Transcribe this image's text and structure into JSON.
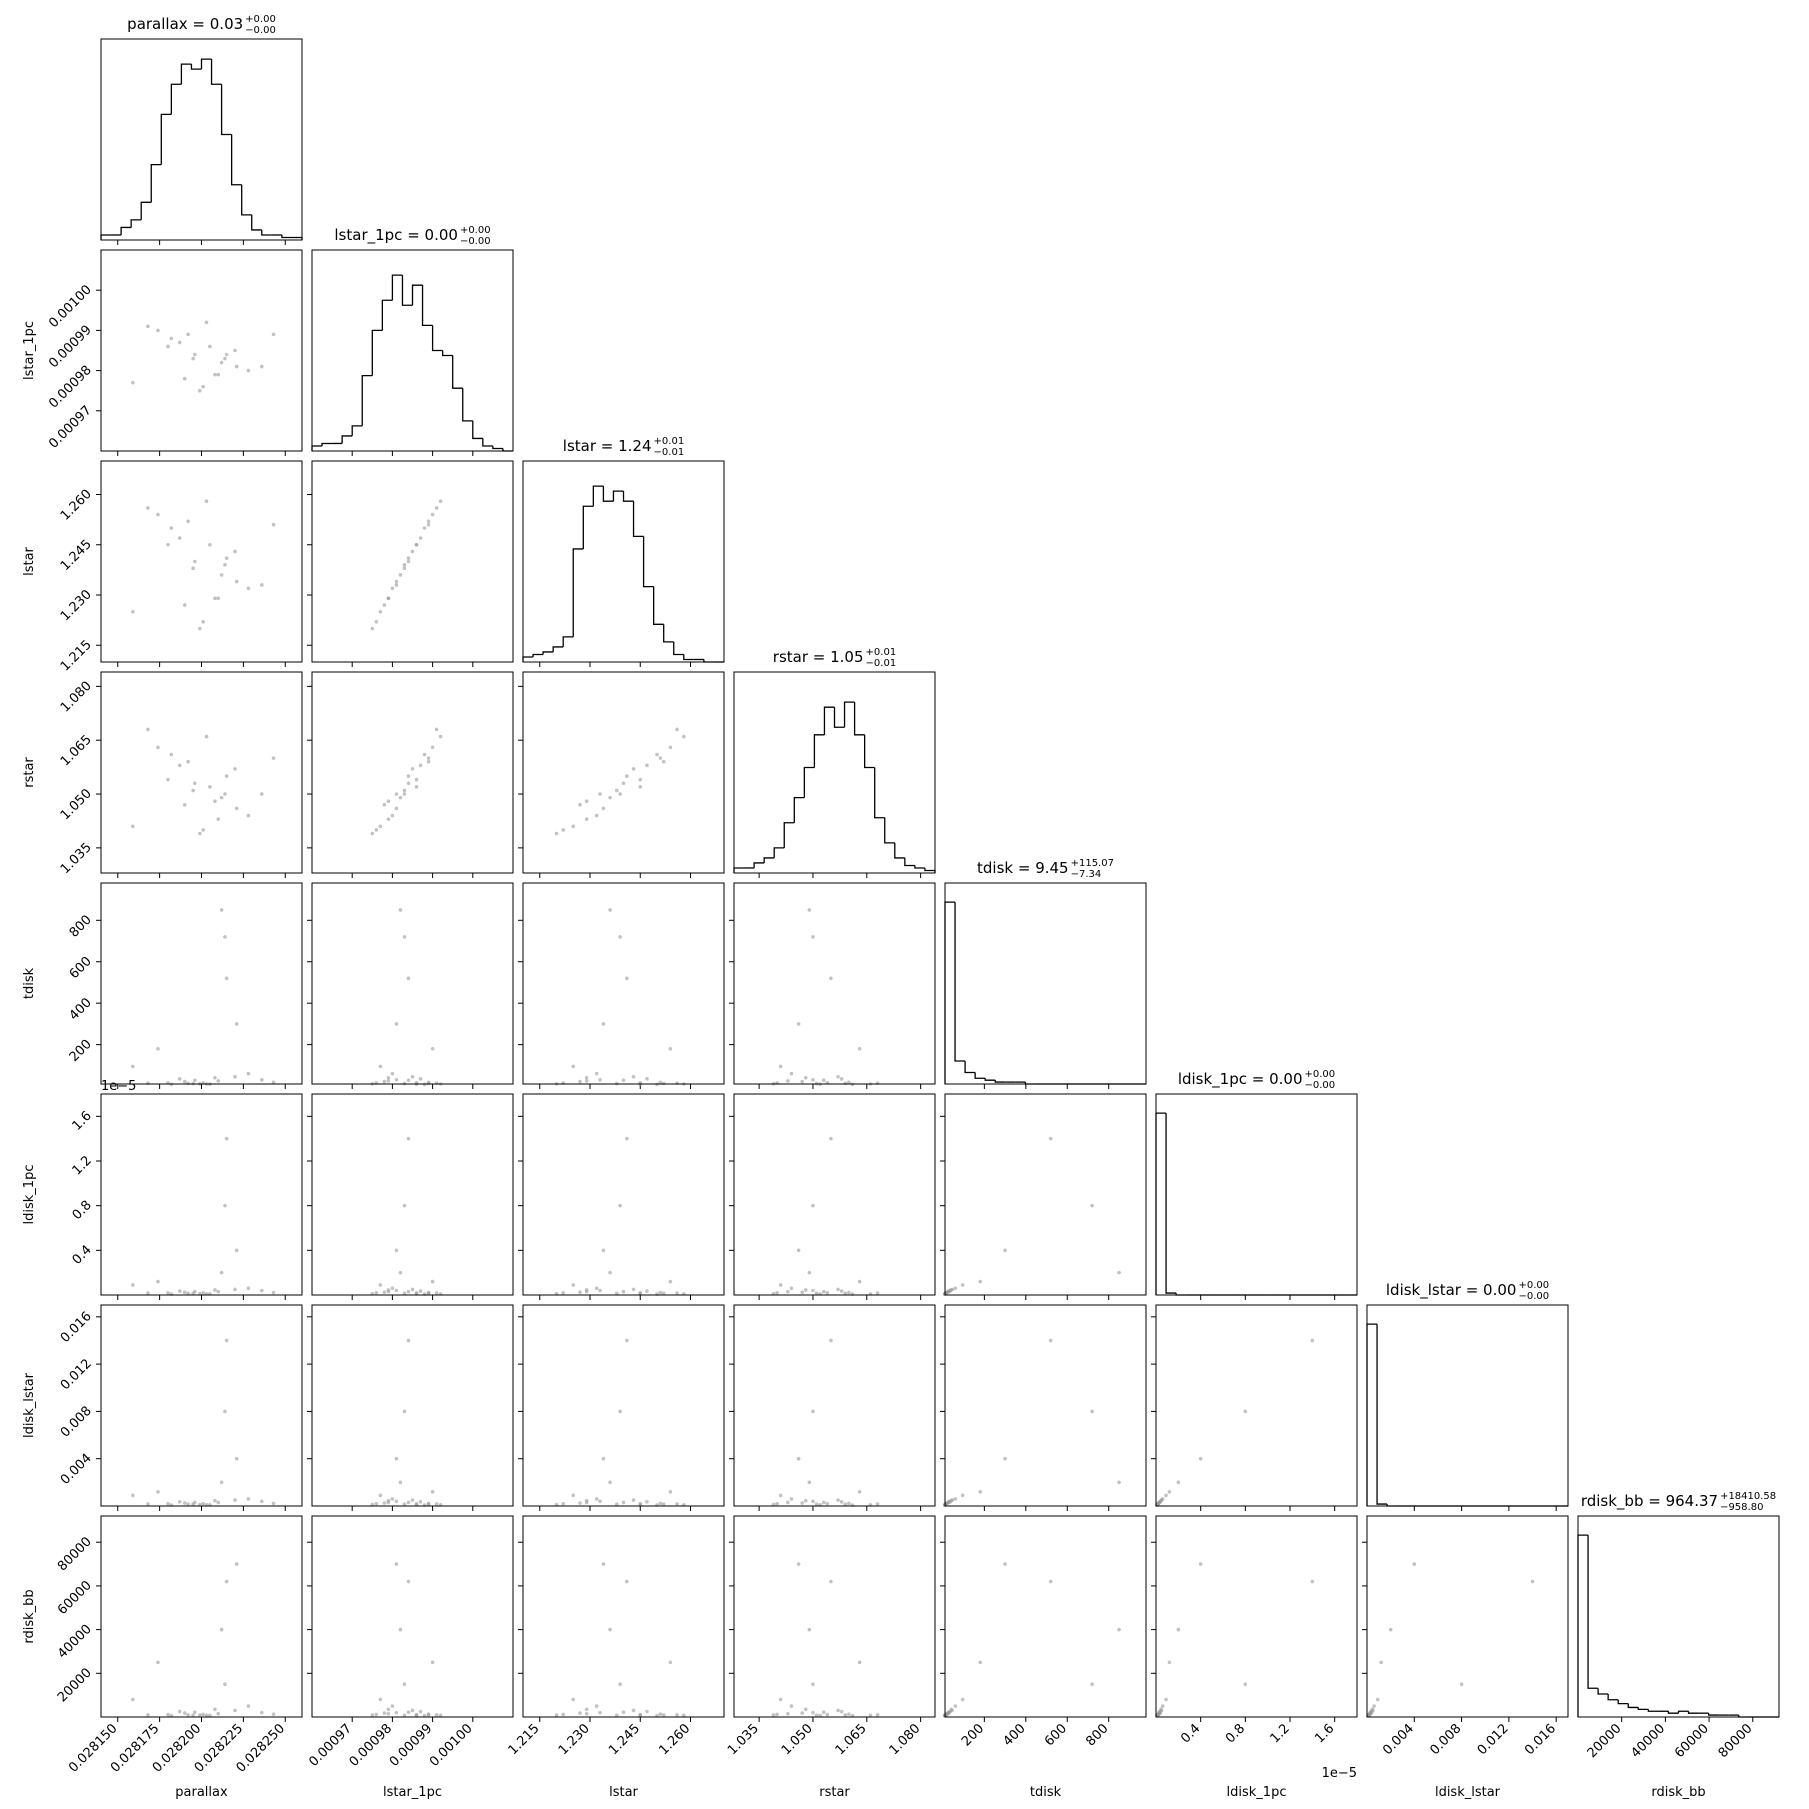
{
  "chart_data": {
    "type": "corner",
    "color": "#000000",
    "point_color": "#9a9a9a",
    "params": [
      {
        "name": "parallax",
        "title": "parallax = 0.03",
        "upper": "+0.00",
        "lower": "−0.00",
        "lim": [
          0.02814,
          0.02826
        ],
        "ticks": [
          {
            "value": 0.02815,
            "label": "0.028150"
          },
          0.028175,
          {
            "value": 0.0282,
            "label": "0.028200"
          },
          0.028225,
          {
            "value": 0.02825,
            "label": "0.028250"
          }
        ],
        "bins": [
          0.02814,
          0.028146,
          0.028152,
          0.028158,
          0.028164,
          0.02817,
          0.028176,
          0.028182,
          0.028188,
          0.028194,
          0.0282,
          0.028206,
          0.028212,
          0.028218,
          0.028224,
          0.02823,
          0.028236,
          0.028242,
          0.028248,
          0.028254,
          0.02826
        ],
        "counts": [
          2,
          2,
          5,
          8,
          15,
          30,
          50,
          62,
          70,
          68,
          72,
          62,
          42,
          22,
          10,
          4,
          2,
          2,
          1,
          1
        ],
        "hist_ylim": [
          0,
          80
        ],
        "samples": [
          0.028195,
          0.02821,
          0.028182,
          0.02822,
          0.028201,
          0.028174,
          0.028236,
          0.028205,
          0.02819,
          0.028215,
          0.028168,
          0.028228,
          0.028199,
          0.028187,
          0.028212,
          0.028243,
          0.028159,
          0.028203,
          0.028196,
          0.028221,
          0.02818,
          0.028208,
          0.028192,
          0.028214
        ]
      },
      {
        "name": "lstar_1pc",
        "title": "lstar_1pc = 0.00",
        "upper": "+0.00",
        "lower": "−0.00",
        "lim": [
          0.00096,
          0.00101
        ],
        "ticks": [
          0.00097,
          0.00098,
          0.00099,
          {
            "value": 0.001,
            "label": "0.00100"
          }
        ],
        "bins": [
          0.00096,
          0.0009625,
          0.000965,
          0.0009675,
          0.00097,
          0.0009725,
          0.000975,
          0.0009775,
          0.00098,
          0.0009825,
          0.000985,
          0.0009875,
          0.00099,
          0.0009925,
          0.000995,
          0.0009975,
          0.001,
          0.0010025,
          0.001005,
          0.0010075,
          0.00101
        ],
        "counts": [
          2,
          3,
          3,
          6,
          10,
          30,
          48,
          60,
          70,
          58,
          66,
          50,
          40,
          38,
          25,
          12,
          5,
          2,
          1,
          0
        ],
        "hist_ylim": [
          0,
          80
        ],
        "samples": [
          0.000983,
          0.000979,
          0.000988,
          0.000985,
          0.000976,
          0.00099,
          0.000981,
          0.000986,
          0.000978,
          0.000984,
          0.000991,
          0.00098,
          0.000975,
          0.000987,
          0.000982,
          0.000989,
          0.000977,
          0.000992,
          0.000984,
          0.000981,
          0.000986,
          0.000979,
          0.000989,
          0.000983
        ]
      },
      {
        "name": "lstar",
        "title": "lstar = 1.24",
        "upper": "+0.01",
        "lower": "−0.01",
        "lim": [
          1.21,
          1.27
        ],
        "ticks": [
          1.215,
          {
            "value": 1.23,
            "label": "1.230"
          },
          1.245,
          {
            "value": 1.26,
            "label": "1.260"
          }
        ],
        "bins": [
          1.21,
          1.213,
          1.216,
          1.219,
          1.222,
          1.225,
          1.228,
          1.231,
          1.234,
          1.237,
          1.24,
          1.243,
          1.246,
          1.249,
          1.252,
          1.255,
          1.258,
          1.261,
          1.264,
          1.267,
          1.27
        ],
        "counts": [
          2,
          3,
          4,
          6,
          10,
          45,
          62,
          70,
          64,
          68,
          64,
          50,
          30,
          15,
          8,
          3,
          1,
          1,
          0,
          0
        ],
        "hist_ylim": [
          0,
          80
        ],
        "samples": [
          1.238,
          1.229,
          1.25,
          1.243,
          1.222,
          1.254,
          1.233,
          1.245,
          1.227,
          1.241,
          1.256,
          1.232,
          1.22,
          1.247,
          1.236,
          1.251,
          1.225,
          1.258,
          1.24,
          1.234,
          1.245,
          1.229,
          1.252,
          1.239
        ]
      },
      {
        "name": "rstar",
        "title": "rstar = 1.05",
        "upper": "+0.01",
        "lower": "−0.01",
        "lim": [
          1.028,
          1.084
        ],
        "ticks": [
          1.035,
          {
            "value": 1.05,
            "label": "1.050"
          },
          1.065,
          {
            "value": 1.08,
            "label": "1.080"
          }
        ],
        "bins": [
          1.028,
          1.0308,
          1.0336,
          1.0364,
          1.0392,
          1.042,
          1.0448,
          1.0476,
          1.0504,
          1.0532,
          1.056,
          1.0588,
          1.0616,
          1.0644,
          1.0672,
          1.07,
          1.0728,
          1.0756,
          1.0784,
          1.0812,
          1.084
        ],
        "counts": [
          2,
          2,
          4,
          6,
          10,
          20,
          30,
          42,
          55,
          66,
          58,
          68,
          55,
          42,
          22,
          12,
          6,
          3,
          2,
          1
        ],
        "hist_ylim": [
          0,
          80
        ],
        "samples": [
          1.051,
          1.043,
          1.061,
          1.057,
          1.04,
          1.063,
          1.05,
          1.052,
          1.047,
          1.055,
          1.068,
          1.044,
          1.039,
          1.058,
          1.049,
          1.06,
          1.041,
          1.066,
          1.053,
          1.046,
          1.054,
          1.048,
          1.059,
          1.05
        ]
      },
      {
        "name": "tdisk",
        "title": "tdisk = 9.45",
        "upper": "+115.07",
        "lower": "−7.34",
        "lim": [
          10,
          980
        ],
        "ticks": [
          200,
          400,
          600,
          800
        ],
        "bins": [
          10,
          58.5,
          107,
          155.5,
          204,
          252.5,
          301,
          349.5,
          398,
          446.5,
          495,
          543.5,
          592,
          640.5,
          689,
          737.5,
          786,
          834.5,
          883,
          931.5,
          980
        ],
        "counts": [
          95,
          12,
          6,
          3,
          2,
          1,
          1,
          1,
          0,
          0,
          0,
          0,
          0,
          0,
          0,
          0,
          0,
          0,
          0,
          0
        ],
        "hist_ylim": [
          0,
          105
        ],
        "samples": [
          12,
          25,
          8,
          45,
          15,
          180,
          30,
          9,
          22,
          520,
          14,
          60,
          11,
          35,
          850,
          18,
          95,
          10,
          28,
          300,
          16,
          40,
          13,
          720
        ]
      },
      {
        "name": "ldisk_1pc",
        "title": "ldisk_1pc = 0.00",
        "upper": "+0.00",
        "lower": "−0.00",
        "offset": "1e−5",
        "lim": [
          0,
          1.8e-05
        ],
        "ticks": [
          {
            "value": 4e-06,
            "label": "0.4"
          },
          {
            "value": 8e-06,
            "label": "0.8"
          },
          {
            "value": 1.2e-05,
            "label": "1.2"
          },
          {
            "value": 1.6e-05,
            "label": "1.6"
          }
        ],
        "bins": [
          0,
          9e-07,
          1.8e-06,
          2.7e-06,
          3.6e-06,
          4.5e-06,
          5.4e-06,
          6.3e-06,
          7.2e-06,
          8.1e-06,
          9e-06,
          9.9e-06,
          1.08e-05,
          1.17e-05,
          1.26e-05,
          1.35e-05,
          1.44e-05,
          1.53e-05,
          1.62e-05,
          1.71e-05,
          1.8e-05
        ],
        "counts": [
          95,
          1,
          0,
          0,
          0,
          0,
          0,
          0,
          0,
          0,
          0,
          0,
          0,
          0,
          0,
          0,
          0,
          0,
          0,
          0
        ],
        "hist_ylim": [
          0,
          105
        ],
        "samples": [
          1.5e-07,
          3e-07,
          8e-08,
          5e-07,
          2e-07,
          1.2e-06,
          4e-07,
          1e-07,
          2.5e-07,
          1.4e-05,
          1.8e-07,
          6e-07,
          1.2e-07,
          3.5e-07,
          2e-06,
          2.2e-07,
          9e-07,
          1e-07,
          3e-07,
          4e-06,
          2e-07,
          4.5e-07,
          1.5e-07,
          8e-06
        ]
      },
      {
        "name": "ldisk_lstar",
        "title": "ldisk_lstar = 0.00",
        "upper": "+0.00",
        "lower": "−0.00",
        "lim": [
          0,
          0.017
        ],
        "ticks": [
          0.004,
          0.008,
          0.012,
          0.016
        ],
        "bins": [
          0,
          0.00085,
          0.0017,
          0.00255,
          0.0034,
          0.00425,
          0.0051,
          0.00595,
          0.0068,
          0.00765,
          0.0085,
          0.00935,
          0.0102,
          0.01105,
          0.0119,
          0.01275,
          0.0136,
          0.01445,
          0.0153,
          0.01615,
          0.017
        ],
        "counts": [
          95,
          1,
          0,
          0,
          0,
          0,
          0,
          0,
          0,
          0,
          0,
          0,
          0,
          0,
          0,
          0,
          0,
          0,
          0,
          0
        ],
        "hist_ylim": [
          0,
          105
        ],
        "samples": [
          0.00015,
          0.0003,
          8e-05,
          0.0005,
          0.0002,
          0.0012,
          0.0004,
          0.0001,
          0.00025,
          0.014,
          0.00018,
          0.0006,
          0.00012,
          0.00035,
          0.002,
          0.00022,
          0.0009,
          0.0001,
          0.0003,
          0.004,
          0.0002,
          0.00045,
          0.00015,
          0.008
        ]
      },
      {
        "name": "rdisk_bb",
        "title": "rdisk_bb = 964.37",
        "upper": "+18410.58",
        "lower": "−958.80",
        "lim": [
          0,
          92000
        ],
        "ticks": [
          20000,
          40000,
          60000,
          80000
        ],
        "bins": [
          0,
          4600,
          9200,
          13800,
          18400,
          23000,
          27600,
          32200,
          36800,
          41400,
          46000,
          50600,
          55200,
          59800,
          64400,
          69000,
          73600,
          78200,
          82800,
          87400,
          92000
        ],
        "counts": [
          95,
          15,
          12,
          9,
          7,
          5,
          4,
          3,
          3,
          2,
          3,
          2,
          2,
          1,
          1,
          1,
          0,
          0,
          0,
          0
        ],
        "hist_ylim": [
          0,
          105
        ],
        "samples": [
          800,
          1500,
          600,
          3000,
          1200,
          25000,
          2000,
          700,
          1800,
          62000,
          1000,
          5000,
          900,
          2500,
          40000,
          1300,
          8000,
          750,
          2200,
          70000,
          1100,
          3500,
          950,
          15000
        ]
      }
    ]
  }
}
